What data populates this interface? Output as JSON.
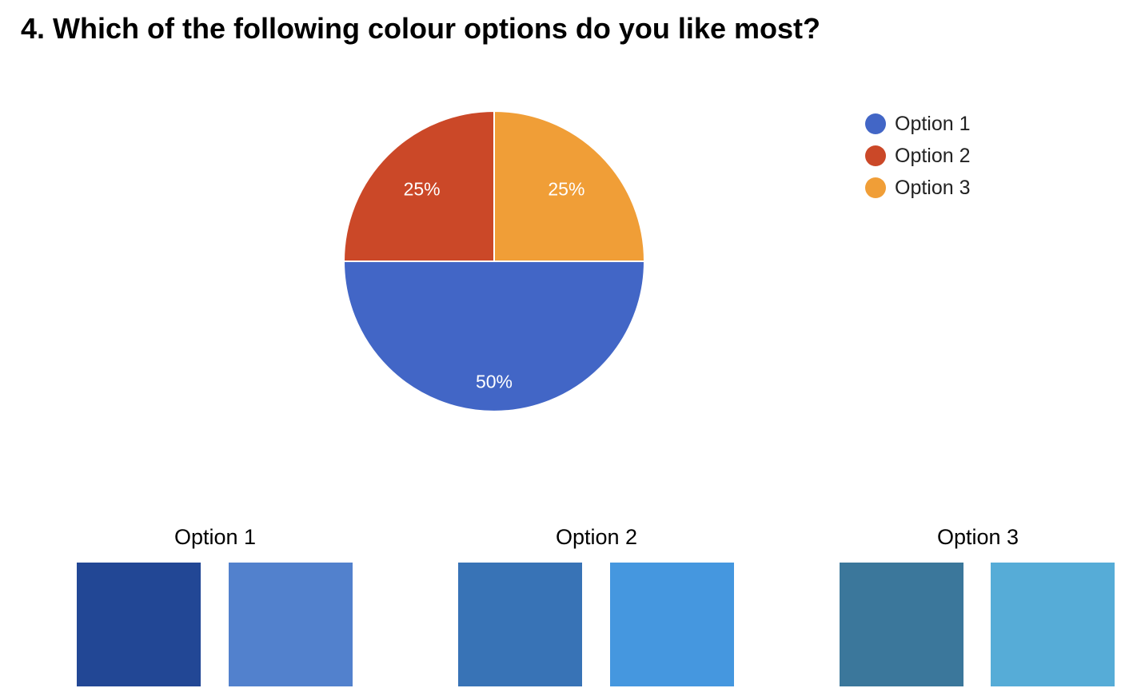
{
  "question": {
    "title": "4. Which of the following colour options do you like most?"
  },
  "chart_data": {
    "type": "pie",
    "categories": [
      "Option 1",
      "Option 2",
      "Option 3"
    ],
    "values": [
      50,
      25,
      25
    ],
    "value_labels": [
      "50%",
      "25%",
      "25%"
    ],
    "colors": [
      "#4266c6",
      "#cb4828",
      "#f09e37"
    ],
    "legend_position": "top-right"
  },
  "legend": {
    "items": [
      {
        "label": "Option 1",
        "color": "#4266c6"
      },
      {
        "label": "Option 2",
        "color": "#cb4828"
      },
      {
        "label": "Option 3",
        "color": "#f09e37"
      }
    ]
  },
  "swatches": [
    {
      "label": "Option 1",
      "colors": [
        "#224795",
        "#5281cd"
      ]
    },
    {
      "label": "Option 2",
      "colors": [
        "#3873b6",
        "#4597df"
      ]
    },
    {
      "label": "Option 3",
      "colors": [
        "#3b779b",
        "#56acd7"
      ]
    }
  ]
}
